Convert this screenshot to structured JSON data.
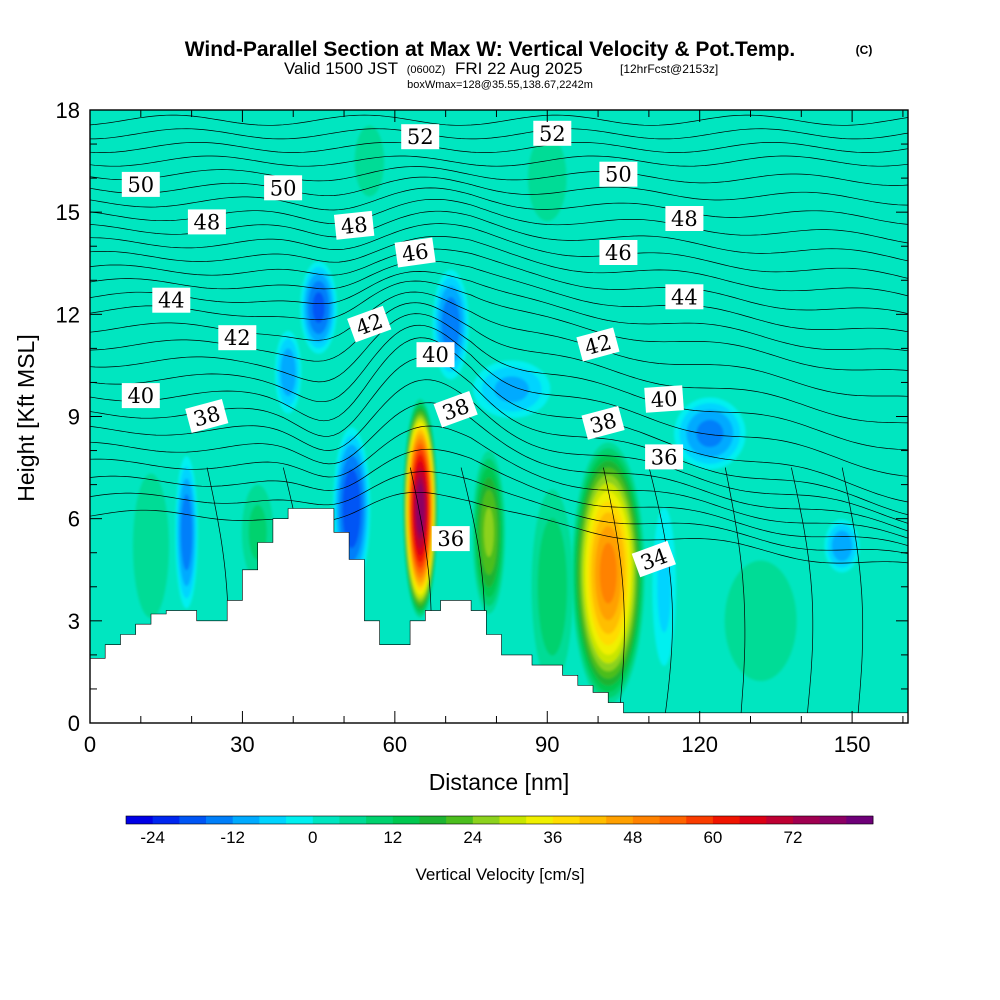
{
  "header": {
    "title": "Wind-Parallel Section at Max W: Vertical Velocity & Pot.Temp.",
    "title_mark": "(C)",
    "subtitle_prefix": "Valid 1500 JST",
    "subtitle_zulu": "(0600Z)",
    "subtitle_date": "FRI 22 Aug 2025",
    "subtitle_fcst": "[12hrFcst@2153z]",
    "subtitle2": "boxWmax=128@35.55,138.67,2242m"
  },
  "chart_data": {
    "type": "heatmap",
    "xlabel": "Distance [nm]",
    "ylabel": "Height [Kft MSL]",
    "xlim": [
      0,
      161
    ],
    "ylim": [
      0,
      18
    ],
    "x_ticks": [
      0,
      30,
      60,
      90,
      120,
      150
    ],
    "y_ticks": [
      0,
      3,
      6,
      9,
      12,
      15,
      18
    ],
    "grid": false,
    "fill_field": "Vertical Velocity [cm/s]",
    "background_level_color": "#00e6c0",
    "w_cells": [
      {
        "x": 65,
        "y": 6.3,
        "w": 78,
        "rx": 3.5,
        "ry": 3.3
      },
      {
        "x": 102,
        "y": 4.4,
        "w": 50,
        "rx": 7.5,
        "ry": 4.0
      },
      {
        "x": 78.5,
        "y": 5.6,
        "w": 26,
        "rx": 3.5,
        "ry": 2.6
      },
      {
        "x": 45,
        "y": 12.2,
        "w": -18,
        "rx": 4,
        "ry": 1.5
      },
      {
        "x": 71,
        "y": 11.7,
        "w": -16,
        "rx": 4,
        "ry": 1.8
      },
      {
        "x": 51.5,
        "y": 6.3,
        "w": -21,
        "rx": 4,
        "ry": 2.6
      },
      {
        "x": 19,
        "y": 5.6,
        "w": -16,
        "rx": 2.5,
        "ry": 2.5
      },
      {
        "x": 39,
        "y": 10.3,
        "w": -12,
        "rx": 3,
        "ry": 1.4
      },
      {
        "x": 122,
        "y": 8.5,
        "w": -14,
        "rx": 8,
        "ry": 1.2
      },
      {
        "x": 83,
        "y": 9.8,
        "w": -10,
        "rx": 9,
        "ry": 1.0
      },
      {
        "x": 148,
        "y": 5.2,
        "w": -12,
        "rx": 4,
        "ry": 0.9
      },
      {
        "x": 12,
        "y": 5.2,
        "w": 8,
        "rx": 5,
        "ry": 3
      },
      {
        "x": 33,
        "y": 5.6,
        "w": 10,
        "rx": 4,
        "ry": 1.8
      },
      {
        "x": 91,
        "y": 4.0,
        "w": 12,
        "rx": 5,
        "ry": 3.5
      },
      {
        "x": 132,
        "y": 3.0,
        "w": 8,
        "rx": 10,
        "ry": 2.5
      },
      {
        "x": 55,
        "y": 16.5,
        "w": 6,
        "rx": 5,
        "ry": 1.8
      },
      {
        "x": 90,
        "y": 16.0,
        "w": 5,
        "rx": 6,
        "ry": 2
      },
      {
        "x": 113,
        "y": 4.0,
        "w": -6,
        "rx": 3,
        "ry": 3
      }
    ],
    "terrain_profile": {
      "x": [
        0,
        3,
        6,
        9,
        12,
        15,
        18,
        21,
        24,
        27,
        30,
        33,
        36,
        39,
        42,
        45,
        48,
        51,
        54,
        57,
        60,
        63,
        66,
        69,
        72,
        75,
        78,
        81,
        84,
        87,
        90,
        93,
        96,
        99,
        102,
        105,
        108,
        111,
        114,
        117,
        120,
        123,
        126,
        129,
        132,
        135,
        138,
        141,
        144,
        147,
        150,
        153,
        156,
        159,
        161
      ],
      "y": [
        1.9,
        2.3,
        2.6,
        2.9,
        3.2,
        3.3,
        3.3,
        3.0,
        3.0,
        3.6,
        4.5,
        5.3,
        6.0,
        6.3,
        6.3,
        6.3,
        5.6,
        4.8,
        3.0,
        2.3,
        2.3,
        3.0,
        3.3,
        3.6,
        3.6,
        3.3,
        2.6,
        2.0,
        2.0,
        1.7,
        1.7,
        1.4,
        1.1,
        0.9,
        0.6,
        0.3,
        0.3,
        0.3,
        0.3,
        0.3,
        0.3,
        0.3,
        0.3,
        0.3,
        0.3,
        0.3,
        0.3,
        0.3,
        0.3,
        0.3,
        0.3,
        0.3,
        0.3,
        0.3,
        0.3
      ]
    },
    "theta_contours": {
      "base_heights": [
        6.1,
        6.6,
        7.1,
        7.6,
        8.1,
        8.6,
        9.1,
        9.6,
        10.1,
        10.6,
        11.1,
        11.6,
        12.1,
        12.5,
        12.9,
        13.3,
        13.7,
        14.1,
        14.5,
        14.9,
        15.3,
        15.7,
        16.1,
        16.5,
        16.9,
        17.3,
        17.7
      ],
      "labels": [
        {
          "text": "52",
          "x": 65,
          "y": 17.2,
          "angle": 0
        },
        {
          "text": "52",
          "x": 91,
          "y": 17.3,
          "angle": 0
        },
        {
          "text": "50",
          "x": 10,
          "y": 15.8,
          "angle": 0
        },
        {
          "text": "50",
          "x": 38,
          "y": 15.7,
          "angle": 0
        },
        {
          "text": "50",
          "x": 104,
          "y": 16.1,
          "angle": 0
        },
        {
          "text": "48",
          "x": 23,
          "y": 14.7,
          "angle": 0
        },
        {
          "text": "48",
          "x": 52,
          "y": 14.6,
          "angle": -6
        },
        {
          "text": "48",
          "x": 117,
          "y": 14.8,
          "angle": 0
        },
        {
          "text": "46",
          "x": 64,
          "y": 13.8,
          "angle": -8
        },
        {
          "text": "46",
          "x": 104,
          "y": 13.8,
          "angle": 0
        },
        {
          "text": "44",
          "x": 16,
          "y": 12.4,
          "angle": 0
        },
        {
          "text": "44",
          "x": 117,
          "y": 12.5,
          "angle": 0
        },
        {
          "text": "42",
          "x": 29,
          "y": 11.3,
          "angle": 0
        },
        {
          "text": "42",
          "x": 55,
          "y": 11.7,
          "angle": -20
        },
        {
          "text": "42",
          "x": 100,
          "y": 11.1,
          "angle": -15
        },
        {
          "text": "40",
          "x": 10,
          "y": 9.6,
          "angle": 0
        },
        {
          "text": "40",
          "x": 68,
          "y": 10.8,
          "angle": 0
        },
        {
          "text": "40",
          "x": 113,
          "y": 9.5,
          "angle": -4
        },
        {
          "text": "38",
          "x": 23,
          "y": 9.0,
          "angle": -15
        },
        {
          "text": "38",
          "x": 72,
          "y": 9.2,
          "angle": -20
        },
        {
          "text": "38",
          "x": 101,
          "y": 8.8,
          "angle": -15
        },
        {
          "text": "36",
          "x": 71,
          "y": 5.4,
          "angle": 0
        },
        {
          "text": "36",
          "x": 113,
          "y": 7.8,
          "angle": 0
        },
        {
          "text": "34",
          "x": 111,
          "y": 4.8,
          "angle": -20
        }
      ]
    },
    "colorbar": {
      "colors": [
        "#0000e6",
        "#0026f0",
        "#0055f5",
        "#007ffa",
        "#00aaff",
        "#00d4ff",
        "#00f0f0",
        "#00e6c0",
        "#00dc96",
        "#00d26e",
        "#00c850",
        "#1eb432",
        "#4bbe1e",
        "#8cd21e",
        "#c8e600",
        "#f0f000",
        "#ffdc00",
        "#ffbe00",
        "#ffa000",
        "#ff8200",
        "#ff6400",
        "#fa3c00",
        "#f01400",
        "#dc0014",
        "#be0032",
        "#a00050",
        "#8c0064",
        "#6e0078"
      ],
      "tick_labels": [
        "-24",
        "-12",
        "0",
        "12",
        "24",
        "36",
        "48",
        "60",
        "72"
      ],
      "tick_values": [
        -24,
        -12,
        0,
        12,
        24,
        36,
        48,
        60,
        72
      ],
      "min": -28,
      "max": 84,
      "label": "Vertical Velocity [cm/s]"
    }
  }
}
